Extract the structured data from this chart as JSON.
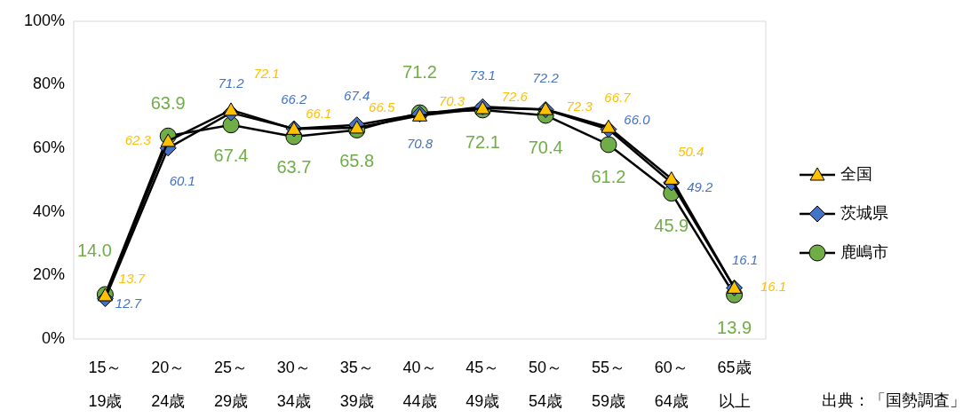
{
  "chart_data": {
    "type": "line",
    "categories": [
      "15～19歳",
      "20～24歳",
      "25～29歳",
      "30～34歳",
      "35～39歳",
      "40～44歳",
      "45～49歳",
      "50～54歳",
      "55～59歳",
      "60～64歳",
      "65歳以上"
    ],
    "ylim": [
      0,
      100
    ],
    "yticks": [
      {
        "value": 0,
        "label": "0%"
      },
      {
        "value": 20,
        "label": "20%"
      },
      {
        "value": 40,
        "label": "40%"
      },
      {
        "value": 60,
        "label": "60%"
      },
      {
        "value": 80,
        "label": "80%"
      },
      {
        "value": 100,
        "label": "100%"
      }
    ],
    "series": [
      {
        "name": "全国",
        "color": "#ffc000",
        "marker": "triangle",
        "values": [
          13.7,
          62.3,
          72.1,
          66.1,
          66.5,
          70.3,
          72.6,
          72.3,
          66.7,
          50.4,
          16.1
        ],
        "value_labels": [
          "13.7",
          "62.3",
          "72.1",
          "66.1",
          "66.5",
          "70.3",
          "72.6",
          "72.3",
          "66.7",
          "50.4",
          "16.1"
        ]
      },
      {
        "name": "茨城県",
        "color": "#4472c4",
        "marker": "diamond",
        "values": [
          12.7,
          60.1,
          71.2,
          66.2,
          67.4,
          70.8,
          73.1,
          72.2,
          66.0,
          49.2,
          16.1
        ],
        "value_labels": [
          "12.7",
          "60.1",
          "71.2",
          "66.2",
          "67.4",
          "70.8",
          "73.1",
          "72.2",
          "66.0",
          "49.2",
          "16.1"
        ]
      },
      {
        "name": "鹿嶋市",
        "color": "#70ad47",
        "marker": "circle",
        "values": [
          14.0,
          63.9,
          67.4,
          63.7,
          65.8,
          71.2,
          72.1,
          70.4,
          61.2,
          45.9,
          13.9
        ],
        "value_labels": [
          "14.0",
          "63.9",
          "67.4",
          "63.7",
          "65.8",
          "71.2",
          "72.1",
          "70.4",
          "61.2",
          "45.9",
          "13.9"
        ]
      }
    ],
    "legend": "right",
    "grid": false,
    "annotations": [
      "出典：「国勢調査」"
    ]
  }
}
